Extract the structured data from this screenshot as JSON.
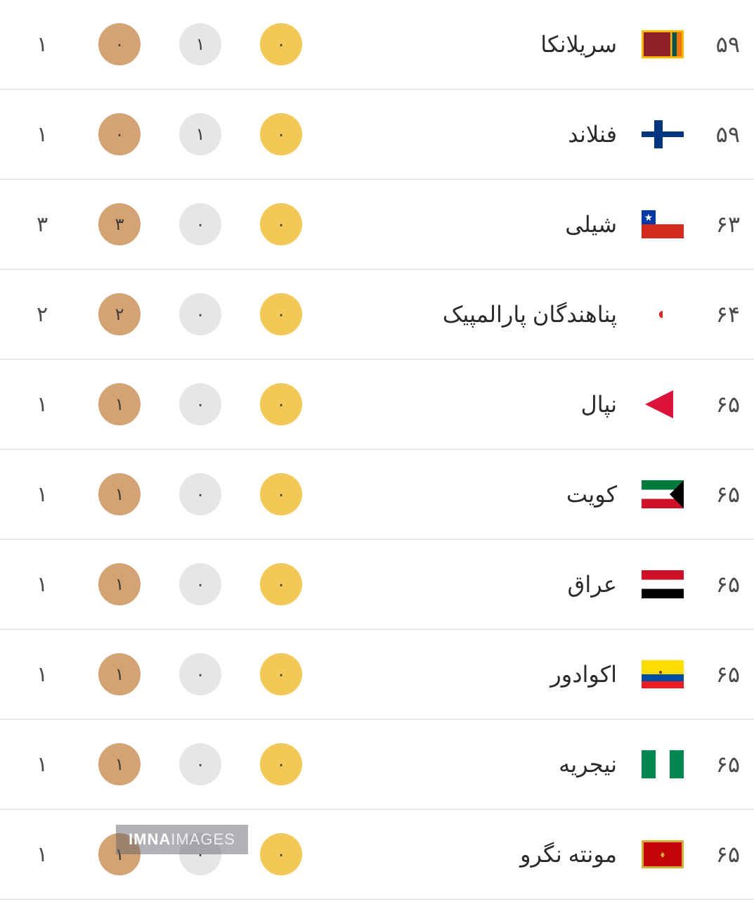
{
  "rows": [
    {
      "rank": "۵۹",
      "country": "سریلانکا",
      "flag": "srilanka",
      "gold": "۰",
      "silver": "۱",
      "bronze": "۰",
      "total": "۱"
    },
    {
      "rank": "۵۹",
      "country": "فنلاند",
      "flag": "finland",
      "gold": "۰",
      "silver": "۱",
      "bronze": "۰",
      "total": "۱"
    },
    {
      "rank": "۶۳",
      "country": "شیلی",
      "flag": "chile",
      "gold": "۰",
      "silver": "۰",
      "bronze": "۳",
      "total": "۳"
    },
    {
      "rank": "۶۴",
      "country": "پناهندگان پارالمپیک",
      "flag": "refugees",
      "gold": "۰",
      "silver": "۰",
      "bronze": "۲",
      "total": "۲"
    },
    {
      "rank": "۶۵",
      "country": "نپال",
      "flag": "nepal",
      "gold": "۰",
      "silver": "۰",
      "bronze": "۱",
      "total": "۱"
    },
    {
      "rank": "۶۵",
      "country": "کویت",
      "flag": "kuwait",
      "gold": "۰",
      "silver": "۰",
      "bronze": "۱",
      "total": "۱"
    },
    {
      "rank": "۶۵",
      "country": "عراق",
      "flag": "iraq",
      "gold": "۰",
      "silver": "۰",
      "bronze": "۱",
      "total": "۱"
    },
    {
      "rank": "۶۵",
      "country": "اکوادور",
      "flag": "ecuador",
      "gold": "۰",
      "silver": "۰",
      "bronze": "۱",
      "total": "۱"
    },
    {
      "rank": "۶۵",
      "country": "نیجریه",
      "flag": "nigeria",
      "gold": "۰",
      "silver": "۰",
      "bronze": "۱",
      "total": "۱"
    },
    {
      "rank": "۶۵",
      "country": "مونته نگرو",
      "flag": "montenegro",
      "gold": "۰",
      "silver": "۰",
      "bronze": "۱",
      "total": "۱"
    }
  ],
  "watermark": {
    "bold": "IMNA",
    "light": "IMAGES"
  },
  "styling": {
    "gold_color": "#f4c857",
    "silver_color": "#e6e6e6",
    "bronze_color": "#d4a373",
    "text_color": "#4a4a4a",
    "country_color": "#2a2a2a",
    "border_color": "#e8e8e8",
    "background": "#ffffff",
    "medal_size": 60,
    "font_size_rank": 32,
    "font_size_country": 32,
    "font_size_medal": 24,
    "font_size_total": 30
  }
}
